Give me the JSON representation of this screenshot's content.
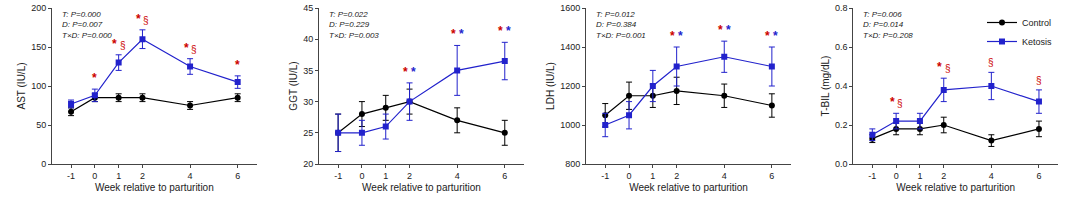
{
  "chart_data": [
    {
      "type": "line",
      "x": [
        -1,
        0,
        1,
        2,
        4,
        6
      ],
      "xlabel": "Week relative to parturition",
      "ylabel": "AST (IU/L)",
      "xlim": [
        -1.8,
        6.8
      ],
      "xticks": [
        -1,
        0,
        1,
        2,
        4,
        6
      ],
      "ylim": [
        0,
        200
      ],
      "yticks": [
        0,
        50,
        100,
        150,
        200
      ],
      "grid": false,
      "annotations": [
        {
          "text": "T: P=0.000\nD: P=0.007\nT×D: P=0.000"
        }
      ],
      "series": [
        {
          "name": "Control",
          "color": "#000000",
          "marker": "circle",
          "line_style": "solid",
          "values": [
            67,
            85,
            85,
            85,
            75,
            85
          ],
          "errors": [
            5,
            5,
            5,
            5,
            5,
            5
          ]
        },
        {
          "name": "Ketosis",
          "color": "#2222cc",
          "marker": "square",
          "line_style": "solid",
          "values": [
            77,
            88,
            130,
            160,
            125,
            105
          ],
          "errors": [
            5,
            8,
            10,
            12,
            10,
            8
          ],
          "annotations": [
            {
              "x": 0,
              "text": "*",
              "color": "#cc0000"
            },
            {
              "x": 1,
              "text": "*",
              "color": "#cc0000"
            },
            {
              "x": 1,
              "text": "§",
              "color": "#cc0000"
            },
            {
              "x": 2,
              "text": "*",
              "color": "#cc0000"
            },
            {
              "x": 2,
              "text": "§",
              "color": "#cc0000"
            },
            {
              "x": 4,
              "text": "*",
              "color": "#cc0000"
            },
            {
              "x": 4,
              "text": "§",
              "color": "#cc0000"
            },
            {
              "x": 6,
              "text": "*",
              "color": "#cc0000"
            }
          ]
        }
      ]
    },
    {
      "type": "line",
      "x": [
        -1,
        0,
        1,
        2,
        4,
        6
      ],
      "xlabel": "Week relative to parturition",
      "ylabel": "GGT (IU/L)",
      "xlim": [
        -1.8,
        6.8
      ],
      "xticks": [
        -1,
        0,
        1,
        2,
        4,
        6
      ],
      "ylim": [
        20,
        45
      ],
      "yticks": [
        20,
        25,
        30,
        35,
        40,
        45
      ],
      "grid": false,
      "annotations": [
        {
          "text": "T: P=0.022\nD: P=0.229\nT×D: P=0.003"
        }
      ],
      "series": [
        {
          "name": "Control",
          "color": "#000000",
          "marker": "circle",
          "line_style": "solid",
          "values": [
            25,
            28,
            29,
            30,
            27,
            25
          ],
          "errors": [
            3,
            2,
            2,
            2,
            2,
            2
          ]
        },
        {
          "name": "Ketosis",
          "color": "#2222cc",
          "marker": "square",
          "line_style": "solid",
          "values": [
            25,
            25,
            26,
            30,
            35,
            36.5
          ],
          "errors": [
            3,
            2,
            2,
            3,
            4,
            3
          ],
          "annotations": [
            {
              "x": 2,
              "text": "*",
              "color": "#cc0000"
            },
            {
              "x": 2,
              "text": "*",
              "color": "#2222cc"
            },
            {
              "x": 4,
              "text": "*",
              "color": "#cc0000"
            },
            {
              "x": 4,
              "text": "*",
              "color": "#2222cc"
            },
            {
              "x": 6,
              "text": "*",
              "color": "#cc0000"
            },
            {
              "x": 6,
              "text": "*",
              "color": "#2222cc"
            }
          ]
        }
      ]
    },
    {
      "type": "line",
      "x": [
        -1,
        0,
        1,
        2,
        4,
        6
      ],
      "xlabel": "Week relative to parturition",
      "ylabel": "LDH (IU/L)",
      "xlim": [
        -1.8,
        6.8
      ],
      "xticks": [
        -1,
        0,
        1,
        2,
        4,
        6
      ],
      "ylim": [
        800,
        1600
      ],
      "yticks": [
        800,
        1000,
        1200,
        1400,
        1600
      ],
      "grid": false,
      "annotations": [
        {
          "text": "T: P=0.012\nD: P=0.384\nT×D: P=0.001"
        }
      ],
      "series": [
        {
          "name": "Control",
          "color": "#000000",
          "marker": "circle",
          "line_style": "solid",
          "values": [
            1050,
            1150,
            1150,
            1175,
            1150,
            1100
          ],
          "errors": [
            60,
            70,
            60,
            70,
            60,
            60
          ]
        },
        {
          "name": "Ketosis",
          "color": "#2222cc",
          "marker": "square",
          "line_style": "solid",
          "values": [
            1000,
            1050,
            1200,
            1300,
            1350,
            1300
          ],
          "errors": [
            60,
            70,
            80,
            100,
            80,
            100
          ],
          "annotations": [
            {
              "x": 2,
              "text": "*",
              "color": "#cc0000"
            },
            {
              "x": 2,
              "text": "*",
              "color": "#2222cc"
            },
            {
              "x": 4,
              "text": "*",
              "color": "#cc0000"
            },
            {
              "x": 4,
              "text": "*",
              "color": "#2222cc"
            },
            {
              "x": 6,
              "text": "*",
              "color": "#cc0000"
            },
            {
              "x": 6,
              "text": "*",
              "color": "#2222cc"
            }
          ]
        }
      ]
    },
    {
      "type": "line",
      "x": [
        -1,
        0,
        1,
        2,
        4,
        6
      ],
      "xlabel": "Week relative to parturition",
      "ylabel": "T-BIL (mg/dL)",
      "xlim": [
        -1.8,
        6.8
      ],
      "xticks": [
        -1,
        0,
        1,
        2,
        4,
        6
      ],
      "ylim": [
        0.0,
        0.8
      ],
      "yticks": [
        {
          "value": 0.0,
          "label": "0.0"
        },
        0.2,
        0.4,
        0.6,
        0.8
      ],
      "grid": false,
      "legend": "upper right",
      "annotations": [
        {
          "text": "T: P=0.006\nD: P=0.014\nT×D: P=0.208"
        }
      ],
      "series": [
        {
          "name": "Control",
          "color": "#000000",
          "marker": "circle",
          "line_style": "solid",
          "values": [
            0.13,
            0.18,
            0.18,
            0.2,
            0.12,
            0.18
          ],
          "errors": [
            0.02,
            0.03,
            0.03,
            0.04,
            0.03,
            0.04
          ]
        },
        {
          "name": "Ketosis",
          "color": "#2222cc",
          "marker": "square",
          "line_style": "solid",
          "values": [
            0.15,
            0.22,
            0.22,
            0.38,
            0.4,
            0.32
          ],
          "errors": [
            0.03,
            0.04,
            0.04,
            0.06,
            0.07,
            0.06
          ],
          "annotations": [
            {
              "x": 0,
              "text": "*",
              "color": "#cc0000"
            },
            {
              "x": 0,
              "text": "§",
              "color": "#cc0000"
            },
            {
              "x": 2,
              "text": "*",
              "color": "#cc0000"
            },
            {
              "x": 2,
              "text": "§",
              "color": "#cc0000"
            },
            {
              "x": 4,
              "text": "§",
              "color": "#cc0000"
            },
            {
              "x": 6,
              "text": "§",
              "color": "#cc0000"
            }
          ]
        }
      ]
    }
  ]
}
